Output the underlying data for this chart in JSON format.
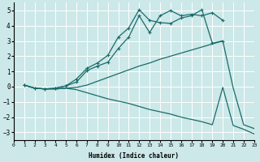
{
  "xlabel": "Humidex (Indice chaleur)",
  "bg_color": "#cce8e8",
  "grid_color": "#ffffff",
  "line_color": "#1a6b6b",
  "xlim": [
    0,
    23
  ],
  "ylim": [
    -3.5,
    5.5
  ],
  "yticks": [
    -3,
    -2,
    -1,
    0,
    1,
    2,
    3,
    4,
    5
  ],
  "xticks": [
    0,
    1,
    2,
    3,
    4,
    5,
    6,
    7,
    8,
    9,
    10,
    11,
    12,
    13,
    14,
    15,
    16,
    17,
    18,
    19,
    20,
    21,
    22,
    23
  ],
  "line1_x": [
    1,
    2,
    3,
    4,
    5,
    6,
    7,
    8,
    9,
    10,
    11,
    12,
    13,
    14,
    15,
    16,
    17,
    18,
    19,
    20
  ],
  "line1_y": [
    0.1,
    -0.1,
    -0.15,
    -0.1,
    0.05,
    0.3,
    1.05,
    1.35,
    1.6,
    2.5,
    3.25,
    4.65,
    3.55,
    4.65,
    5.0,
    4.65,
    4.75,
    4.65,
    4.85,
    4.35
  ],
  "line2_x": [
    1,
    2,
    3,
    4,
    5,
    6,
    7,
    8,
    9,
    10,
    11,
    12,
    13,
    14,
    15,
    16,
    17,
    18,
    19,
    20
  ],
  "line2_y": [
    0.1,
    -0.1,
    -0.15,
    -0.1,
    0.05,
    0.5,
    1.2,
    1.55,
    2.05,
    3.25,
    3.85,
    5.05,
    4.35,
    4.2,
    4.15,
    4.5,
    4.65,
    5.05,
    2.85,
    3.0
  ],
  "line3_x": [
    1,
    2,
    3,
    4,
    5,
    6,
    7,
    8,
    9,
    10,
    11,
    12,
    13,
    14,
    15,
    16,
    17,
    18,
    19,
    20,
    21,
    22,
    23
  ],
  "line3_y": [
    0.1,
    -0.1,
    -0.15,
    -0.15,
    -0.1,
    -0.05,
    0.1,
    0.35,
    0.6,
    0.85,
    1.1,
    1.35,
    1.55,
    1.8,
    2.0,
    2.2,
    2.4,
    2.6,
    2.8,
    3.0,
    -0.1,
    -2.5,
    -2.75
  ],
  "line4_x": [
    1,
    2,
    3,
    4,
    5,
    6,
    7,
    8,
    9,
    10,
    11,
    12,
    13,
    14,
    15,
    16,
    17,
    18,
    19,
    20,
    21,
    22,
    23
  ],
  "line4_y": [
    0.1,
    -0.1,
    -0.15,
    -0.15,
    -0.1,
    -0.2,
    -0.4,
    -0.6,
    -0.8,
    -0.95,
    -1.1,
    -1.3,
    -1.5,
    -1.65,
    -1.8,
    -2.0,
    -2.15,
    -2.3,
    -2.5,
    -0.05,
    -2.55,
    -2.8,
    -3.1
  ],
  "linewidth": 0.9,
  "marker_size": 3.5
}
